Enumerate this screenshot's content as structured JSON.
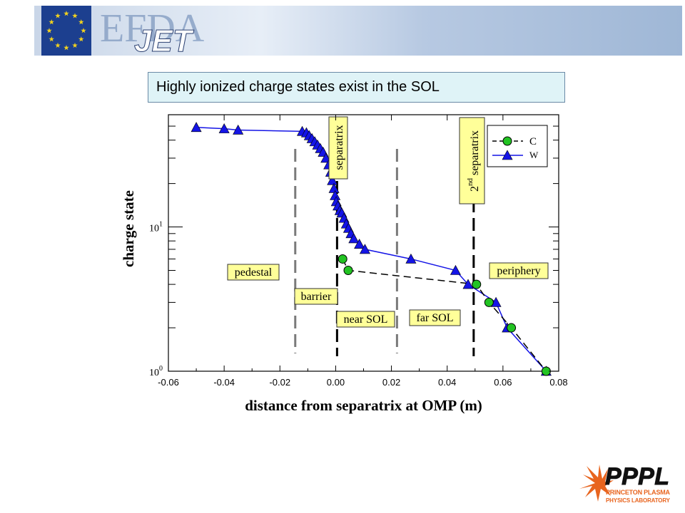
{
  "banner": {
    "logo_text": "EFDA",
    "logo_sub": "JET",
    "flag_color": "#1c3f8f",
    "star_color": "#f2d21e"
  },
  "subtitle": "Highly ionized charge states exist in the SOL",
  "footer_logo": {
    "text": "PPPL",
    "line1": "PRINCETON PLASMA",
    "line2": "PHYSICS LABORATORY"
  },
  "chart_data": {
    "type": "scatter",
    "xlabel": "distance from separatrix at OMP (m)",
    "ylabel": "charge state",
    "xlim": [
      -0.06,
      0.08
    ],
    "ylim": [
      1,
      60
    ],
    "yscale": "log",
    "x_ticks": [
      "-0.06",
      "-0.04",
      "-0.02",
      "0.00",
      "0.02",
      "0.04",
      "0.06",
      "0.08"
    ],
    "y_ticks": [
      {
        "base": "10",
        "exp": "0"
      },
      {
        "base": "10",
        "exp": "1"
      }
    ],
    "legend_position": "top-right",
    "series": [
      {
        "name": "C",
        "color": "#22c322",
        "marker": "circle",
        "line": "dashed",
        "x": [
          0.0025,
          0.0045,
          0.0505,
          0.055,
          0.063,
          0.0755
        ],
        "y": [
          6,
          5,
          4,
          3,
          2,
          1
        ]
      },
      {
        "name": "W",
        "color": "#1414e6",
        "marker": "triangle",
        "line": "solid",
        "x": [
          -0.05,
          -0.04,
          -0.035,
          -0.012,
          -0.0105,
          -0.0095,
          -0.0085,
          -0.0075,
          -0.0065,
          -0.0055,
          -0.0045,
          -0.0035,
          -0.0025,
          -0.0018,
          -0.0012,
          -0.0006,
          -0.0002,
          0.0002,
          0.0008,
          0.0015,
          0.0022,
          0.003,
          0.0038,
          0.0046,
          0.0055,
          0.0065,
          0.0085,
          0.0105,
          0.027,
          0.043,
          0.0475,
          0.0575,
          0.0615,
          0.0755
        ],
        "y": [
          49,
          48,
          47,
          46,
          45,
          43,
          41,
          39,
          37,
          35,
          33,
          30,
          27,
          24,
          21,
          18.5,
          16.5,
          15,
          14,
          13,
          12.5,
          11.5,
          10.5,
          9.8,
          9,
          8.3,
          7.6,
          7,
          6,
          5,
          4,
          3,
          2,
          1
        ]
      }
    ],
    "vertical_lines": [
      {
        "x": -0.0145,
        "style": "dashed",
        "color": "#7a7a7a",
        "label": "pedestal"
      },
      {
        "x": 0.0005,
        "style": "dashed",
        "color": "#000000",
        "label": "separatrix"
      },
      {
        "x": 0.022,
        "style": "dashed",
        "color": "#7a7a7a",
        "label": ""
      },
      {
        "x": 0.0495,
        "style": "dashed",
        "color": "#000000",
        "label": "2nd separatrix"
      }
    ],
    "region_labels": [
      {
        "text": "pedestal"
      },
      {
        "text": "barrier"
      },
      {
        "text": "near SOL"
      },
      {
        "text": "far SOL"
      },
      {
        "text": "periphery"
      }
    ],
    "rotated_labels": [
      {
        "text": "separatrix"
      },
      {
        "base": "2",
        "sup": "nd",
        "text": " separatrix"
      }
    ],
    "label_box_color": "#ffff99"
  }
}
